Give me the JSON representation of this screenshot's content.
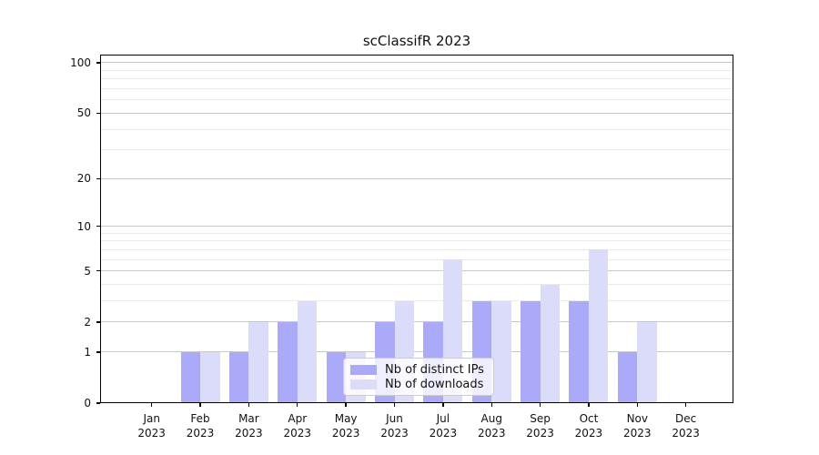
{
  "title": "scClassifR 2023",
  "year": "2023",
  "colors": {
    "bar_distinct_ips": "#aaaaf8",
    "bar_downloads": "#dbdbfa",
    "grid_major": "#c8c8c8",
    "grid_minor": "#eaeaea",
    "axis": "#000000",
    "legend_border": "#cccccc"
  },
  "chart_data": {
    "type": "bar",
    "title": "scClassifR 2023",
    "xlabel": "",
    "ylabel": "",
    "months": [
      "Jan",
      "Feb",
      "Mar",
      "Apr",
      "May",
      "Jun",
      "Jul",
      "Aug",
      "Sep",
      "Oct",
      "Nov",
      "Dec"
    ],
    "categories": [
      "Jan 2023",
      "Feb 2023",
      "Mar 2023",
      "Apr 2023",
      "May 2023",
      "Jun 2023",
      "Jul 2023",
      "Aug 2023",
      "Sep 2023",
      "Oct 2023",
      "Nov 2023",
      "Dec 2023"
    ],
    "series": [
      {
        "name": "Nb of distinct IPs",
        "color": "#aaaaf8",
        "values": [
          0,
          1,
          1,
          2,
          1,
          2,
          2,
          3,
          3,
          3,
          1,
          0
        ]
      },
      {
        "name": "Nb of downloads",
        "color": "#dbdbfa",
        "values": [
          0,
          1,
          2,
          3,
          1,
          3,
          6,
          3,
          4,
          7,
          2,
          0
        ]
      }
    ],
    "y_scale": "log1p",
    "y_ticks_major": [
      0,
      1,
      2,
      5,
      10,
      20,
      50,
      100
    ],
    "y_ticks_minor": [
      3,
      4,
      6,
      7,
      8,
      9,
      30,
      40,
      60,
      70,
      80,
      90
    ],
    "ylim": [
      0,
      111
    ],
    "grid": true,
    "legend_position": "lower center"
  },
  "legend": {
    "item1": "Nb of distinct IPs",
    "item2": "Nb of downloads"
  }
}
